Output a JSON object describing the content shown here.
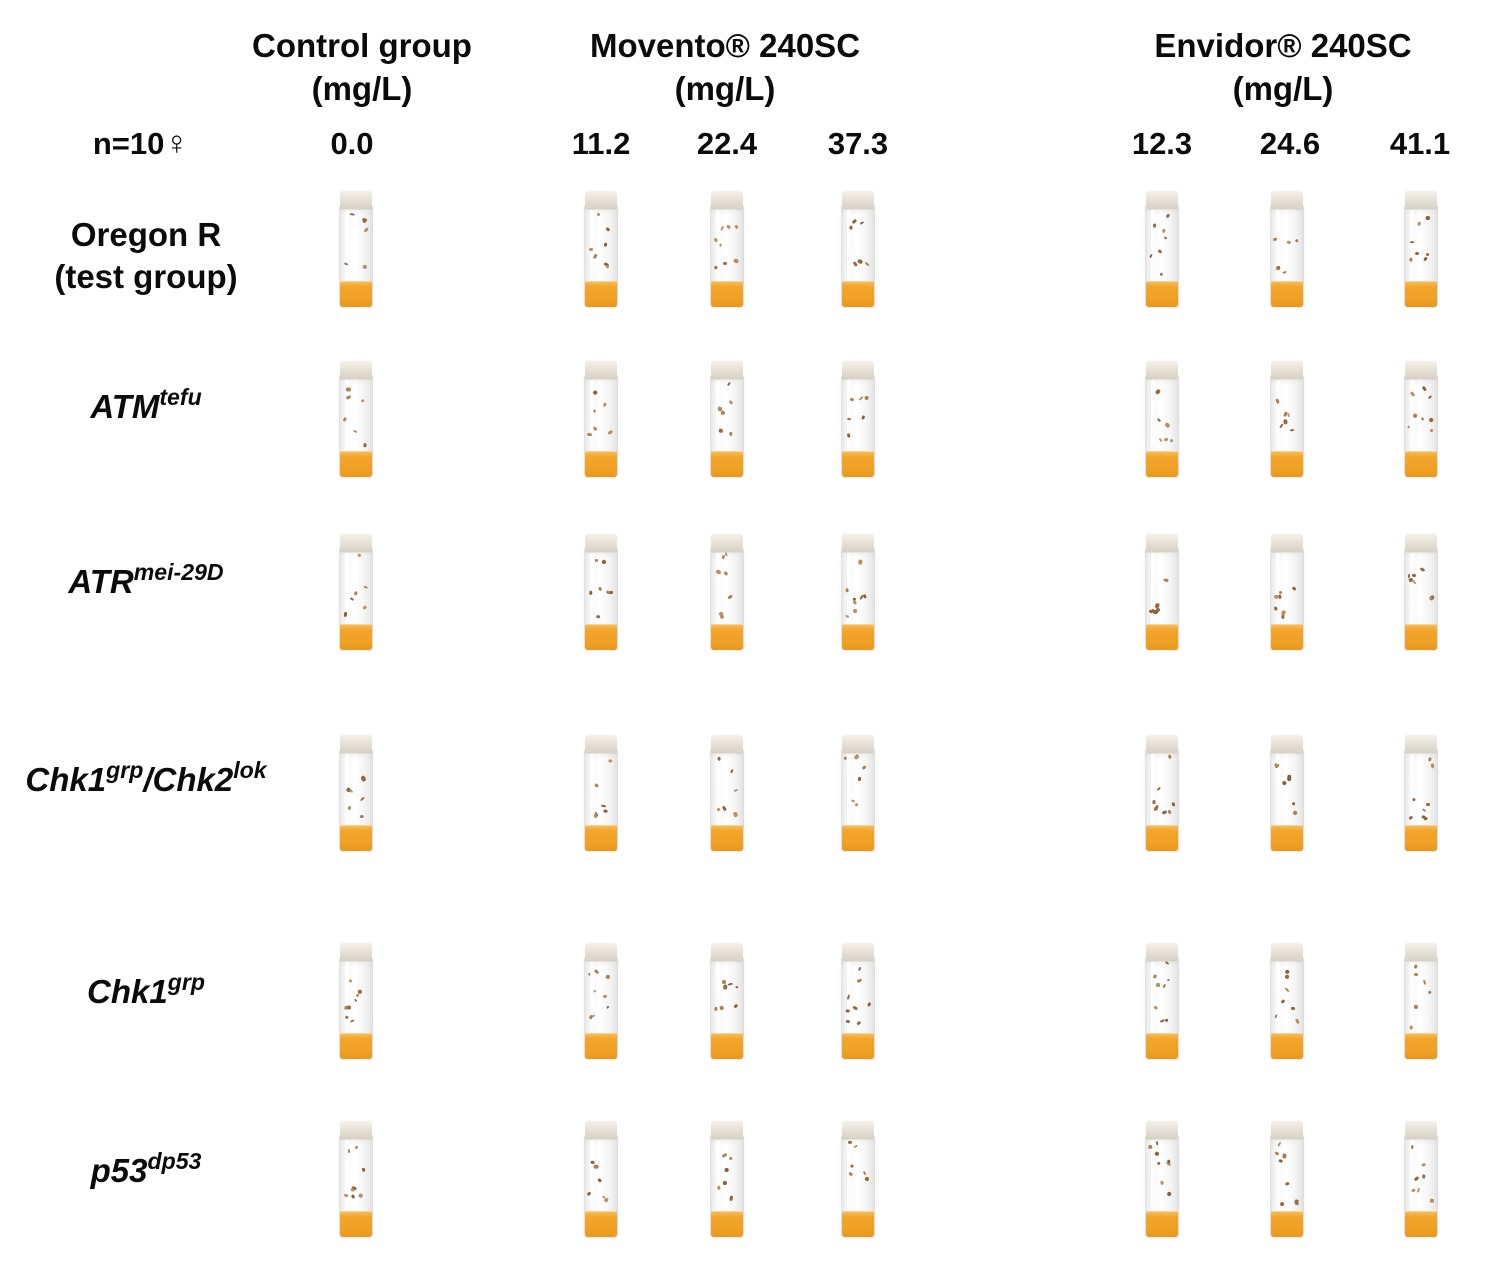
{
  "figure": {
    "description": "Fly vial assay grid: genotypes vs insecticide concentrations"
  },
  "table": {
    "n_prefix": "n=10",
    "female_symbol": "♀",
    "groups": [
      {
        "name": "Control group",
        "unit": "(mg/L)"
      },
      {
        "name": "Movento® 240SC",
        "unit": "(mg/L)"
      },
      {
        "name": "Envidor® 240SC",
        "unit": "(mg/L)"
      }
    ],
    "concentrations": [
      "0.0",
      "11.2",
      "22.4",
      "37.3",
      "12.3",
      "24.6",
      "41.1"
    ],
    "rows": [
      {
        "line1": "Oregon R",
        "line2": "(test group)"
      },
      {
        "base": "ATM",
        "sup": "tefu"
      },
      {
        "base": "ATR",
        "sup": "mei-29D"
      },
      {
        "base1": "Chk1",
        "sup1": "grp",
        "base2": "/Chk2",
        "sup2": "lok"
      },
      {
        "base": "Chk1",
        "sup": "grp"
      },
      {
        "base": "p53",
        "sup": "dp53"
      }
    ]
  },
  "colors": {
    "food": "#f2a52a",
    "cap": "#e5e0d4",
    "glass": "#ffffff",
    "fly": "#a87c50"
  }
}
